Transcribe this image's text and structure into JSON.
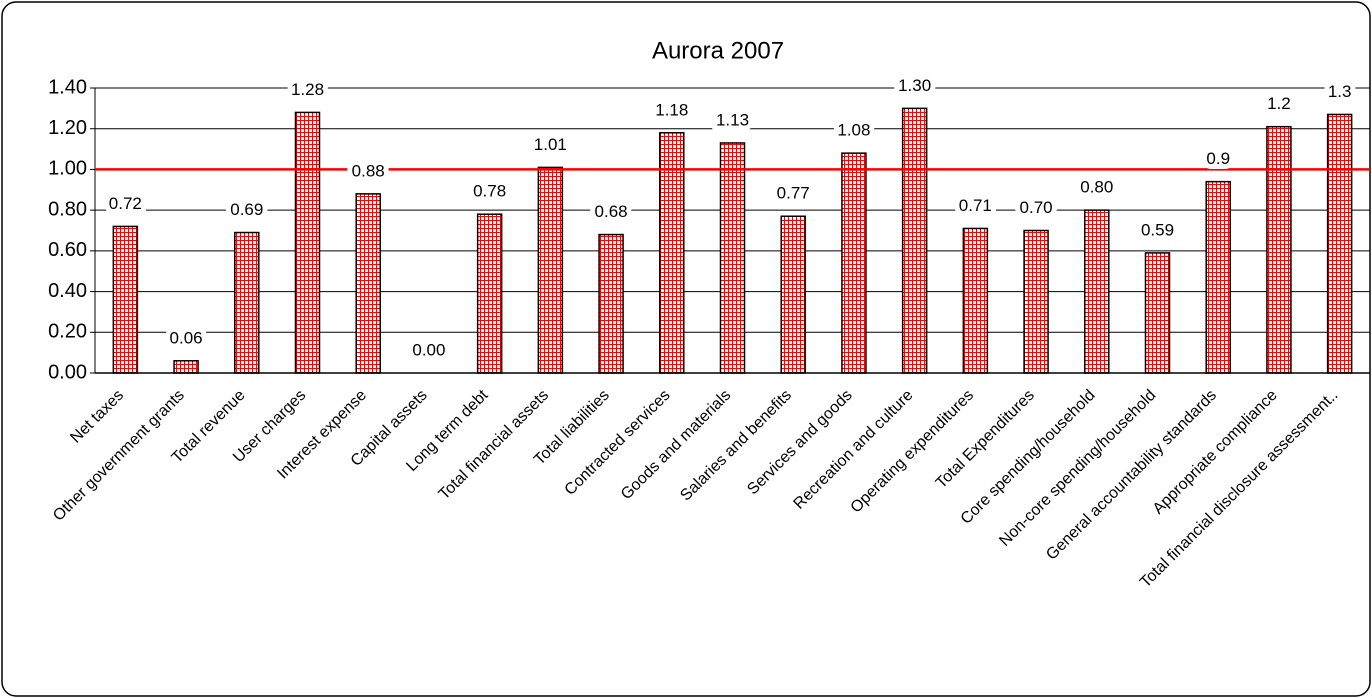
{
  "chart_data": {
    "type": "bar",
    "title": "Aurora 2007",
    "categories": [
      "Net taxes",
      "Other government grants",
      "Total revenue",
      "User charges",
      "Interest expense",
      "Capital assets",
      "Long term debt",
      "Total financial assets",
      "Total liabilities",
      "Contracted services",
      "Goods and materials",
      "Salaries and benefits",
      "Services and goods",
      "Recreation and culture",
      "Operating expenditures",
      "Total Expenditures",
      "Core spending/household",
      "Non-core spending/household",
      "General accountability standards",
      "Appropriate compliance",
      "Total financial disclosure assessment.."
    ],
    "values": [
      0.72,
      0.06,
      0.69,
      1.28,
      0.88,
      0,
      0.78,
      1.01,
      0.68,
      1.18,
      1.13,
      0.77,
      1.08,
      1.3,
      0.71,
      0.7,
      0.8,
      0.59,
      0.94,
      1.21,
      1.27
    ],
    "value_labels": [
      "0.72",
      "0.06",
      "0.69",
      "1.28",
      "0.88",
      "0.00",
      "0.78",
      "1.01",
      "0.68",
      "1.18",
      "1.13",
      "0.77",
      "1.08",
      "1.30",
      "0.71",
      "0.70",
      "0.80",
      "0.59",
      "0.9",
      "1.2",
      "1.3"
    ],
    "color": "#ff0000",
    "ylim": [
      0,
      1.4
    ],
    "yticks": [
      {
        "value": 0,
        "label": "0.00"
      },
      {
        "value": 0.2,
        "label": "0.20"
      },
      {
        "value": 0.4,
        "label": "0.40"
      },
      {
        "value": 0.6,
        "label": "0.60"
      },
      {
        "value": 0.8,
        "label": "0.80"
      },
      {
        "value": 1,
        "label": "1.00"
      },
      {
        "value": 1.2,
        "label": "1.20"
      },
      {
        "value": 1.4,
        "label": "1.40"
      }
    ],
    "grid": true,
    "reference_line": {
      "value": 1,
      "color": "#ff0000"
    }
  }
}
